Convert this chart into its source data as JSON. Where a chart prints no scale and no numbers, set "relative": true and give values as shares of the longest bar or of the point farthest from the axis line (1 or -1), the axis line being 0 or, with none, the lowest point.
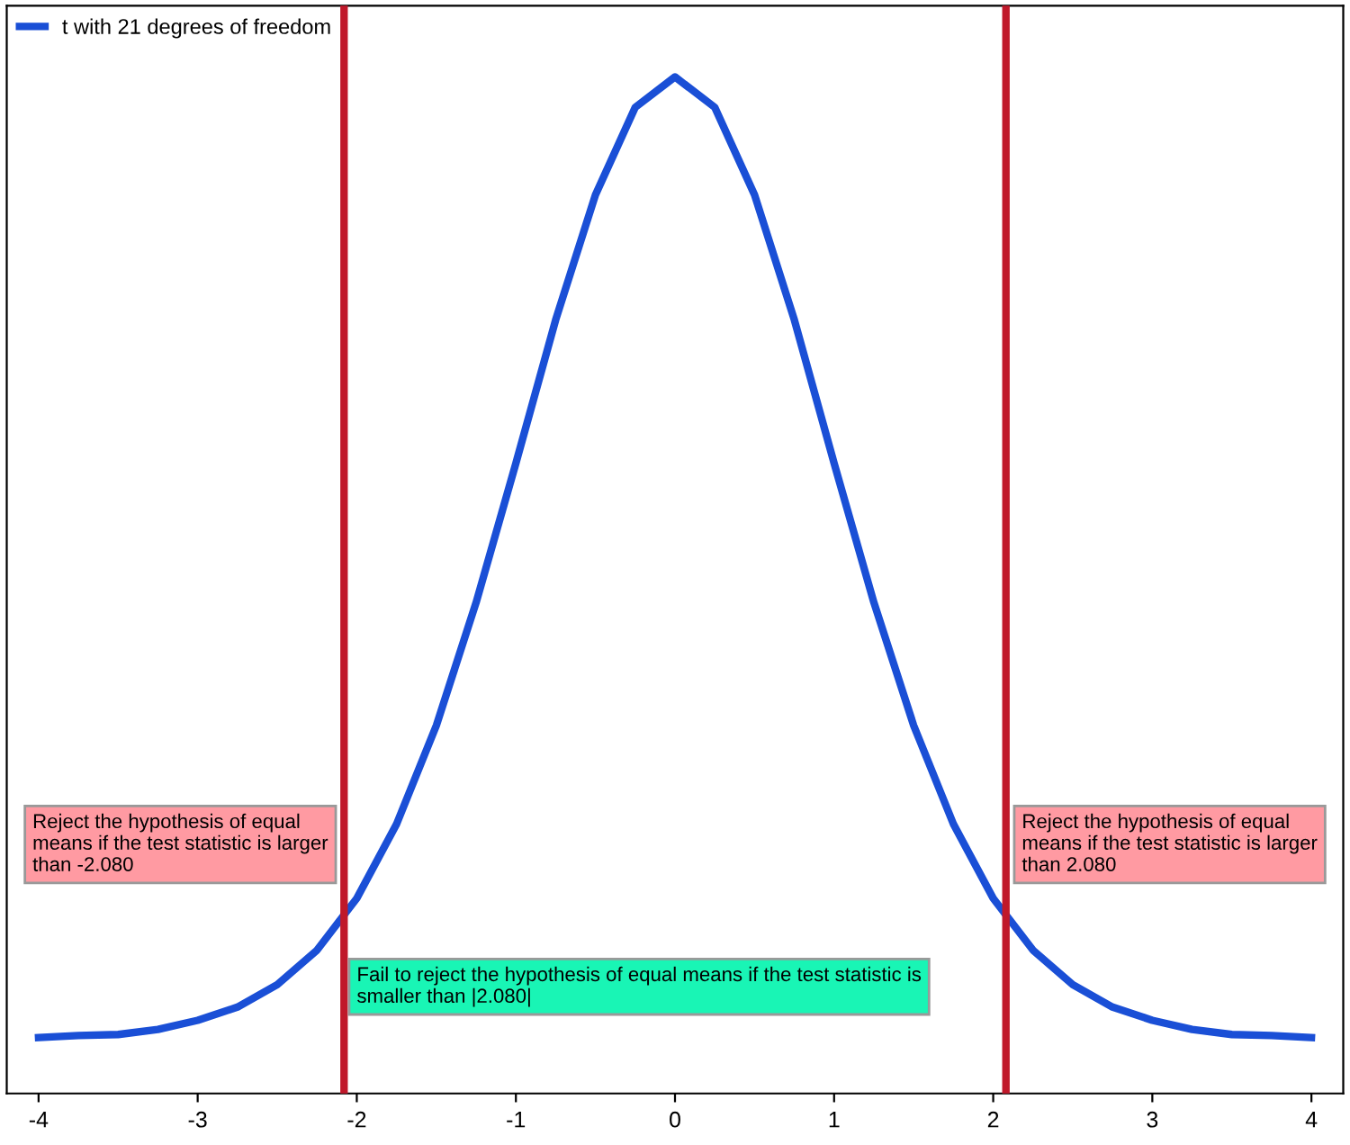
{
  "chart_data": {
    "type": "line",
    "relative": true,
    "series": [
      {
        "name": "t with 21 degrees of freedom",
        "color": "#1a4fd6",
        "x": [
          -4,
          -3.75,
          -3.5,
          -3.25,
          -3,
          -2.75,
          -2.5,
          -2.25,
          -2,
          -1.75,
          -1.5,
          -1.25,
          -1,
          -0.75,
          -0.5,
          -0.25,
          0,
          0.25,
          0.5,
          0.75,
          1,
          1.25,
          1.5,
          1.75,
          2,
          2.25,
          2.5,
          2.75,
          3,
          3.25,
          3.5,
          3.75,
          4
        ],
        "values": [
          0.055,
          0.057,
          0.058,
          0.063,
          0.072,
          0.085,
          0.107,
          0.141,
          0.192,
          0.265,
          0.362,
          0.483,
          0.62,
          0.761,
          0.884,
          0.97,
          1,
          0.97,
          0.884,
          0.761,
          0.62,
          0.483,
          0.362,
          0.265,
          0.192,
          0.141,
          0.107,
          0.085,
          0.072,
          0.063,
          0.058,
          0.057,
          0.055
        ]
      }
    ],
    "xlim": [
      -4.2,
      4.2
    ],
    "xticks": [
      -4,
      -3,
      -2,
      -1,
      0,
      1,
      2,
      3,
      4
    ],
    "ref_lines": [
      {
        "axis": "x",
        "value": -2.08,
        "color": "#c0182a",
        "label": "Reject the hypothesis of equal means if the test statistic is larger than -2.080"
      },
      {
        "axis": "x",
        "value": 2.08,
        "color": "#c0182a",
        "label": "Reject the hypothesis of equal means if the test statistic is larger than 2.080"
      }
    ],
    "annotations": [
      "Fail to reject the hypothesis of equal means if the test statistic is smaller than |2.080|"
    ],
    "legend": "top left",
    "grid": false,
    "marker": "none",
    "line_style": "solid"
  }
}
